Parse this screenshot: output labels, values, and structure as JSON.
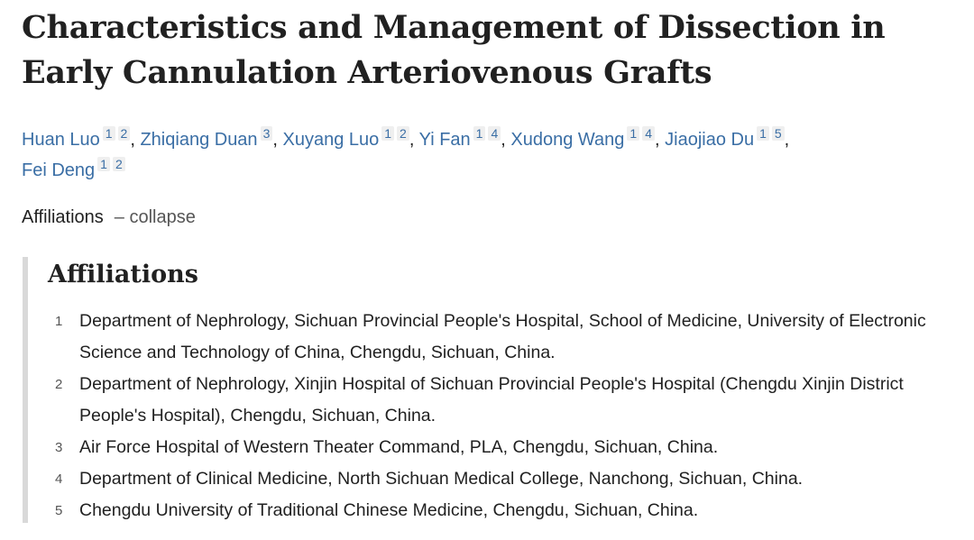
{
  "title": "Characteristics and Management of Dissection in Early Cannulation Arteriovenous Grafts",
  "authors": [
    {
      "name": "Huan Luo",
      "affs": [
        "1",
        "2"
      ]
    },
    {
      "name": "Zhiqiang Duan",
      "affs": [
        "3"
      ]
    },
    {
      "name": "Xuyang Luo",
      "affs": [
        "1",
        "2"
      ]
    },
    {
      "name": "Yi Fan",
      "affs": [
        "1",
        "4"
      ]
    },
    {
      "name": "Xudong Wang",
      "affs": [
        "1",
        "4"
      ]
    },
    {
      "name": "Jiaojiao Du",
      "affs": [
        "1",
        "5"
      ]
    },
    {
      "name": "Fei Deng",
      "affs": [
        "1",
        "2"
      ]
    }
  ],
  "affiliations_toggle": {
    "label": "Affiliations",
    "action": "– collapse"
  },
  "affiliations": {
    "heading": "Affiliations",
    "items": [
      {
        "num": "1",
        "text": "Department of Nephrology, Sichuan Provincial People's Hospital, School of Medicine, University of Electronic Science and Technology of China, Chengdu, Sichuan, China."
      },
      {
        "num": "2",
        "text": "Department of Nephrology, Xinjin Hospital of Sichuan Provincial People's Hospital (Chengdu Xinjin District People's Hospital), Chengdu, Sichuan, China."
      },
      {
        "num": "3",
        "text": "Air Force Hospital of Western Theater Command, PLA, Chengdu, Sichuan, China."
      },
      {
        "num": "4",
        "text": "Department of Clinical Medicine, North Sichuan Medical College, Nanchong, Sichuan, China."
      },
      {
        "num": "5",
        "text": "Chengdu University of Traditional Chinese Medicine, Chengdu, Sichuan, China."
      }
    ]
  },
  "colors": {
    "link": "#3a6ea5",
    "text": "#212121",
    "border": "#d9d9d9"
  }
}
